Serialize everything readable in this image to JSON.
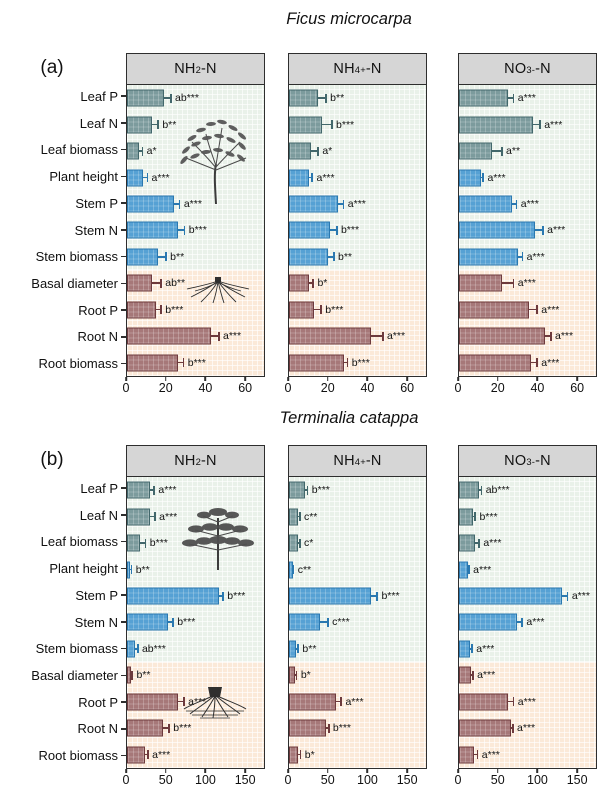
{
  "style": {
    "leaf": {
      "fill": "#7c9b9d",
      "border": "#42676b"
    },
    "stem": {
      "fill": "#56a1d4",
      "border": "#2a78b0"
    },
    "root": {
      "fill": "#a67879",
      "border": "#6d3a3d"
    },
    "zone_green": "#e9f1e9",
    "zone_orange": "#fbe9d8",
    "header_bg": "#d6d6d6",
    "frame": "#2e2e2e"
  },
  "illustrations": {
    "panel_a": [
      "broadleaf-tree-illustration",
      "root-system-illustration"
    ],
    "panel_b": [
      "pagoda-tree-illustration",
      "root-clump-illustration"
    ]
  },
  "chart_data": [
    {
      "type": "bar",
      "title": "Ficus microcarpa",
      "panel_label": "(a)",
      "orientation": "horizontal",
      "grid": true,
      "categories": [
        "Leaf P",
        "Leaf N",
        "Leaf biomass",
        "Plant height",
        "Stem P",
        "Stem N",
        "Stem biomass",
        "Basal diameter",
        "Root P",
        "Root N",
        "Root biomass"
      ],
      "category_groups": [
        "leaf",
        "leaf",
        "leaf",
        "stem",
        "stem",
        "stem",
        "stem",
        "root",
        "root",
        "root",
        "root"
      ],
      "xlim": [
        0,
        70
      ],
      "xticks": [
        0,
        20,
        40,
        60
      ],
      "panels": [
        {
          "header": "NH2-N",
          "header_parts": [
            "NH",
            {
              "sub": "2"
            },
            "-N"
          ],
          "values": [
            19,
            13,
            6,
            8,
            24,
            26,
            16,
            13,
            15,
            43,
            26
          ],
          "errors": [
            3.5,
            3,
            2,
            2.5,
            3,
            3.5,
            4,
            4.5,
            2.5,
            4,
            3
          ],
          "sig": [
            "ab***",
            "b**",
            "a*",
            "a***",
            "a***",
            "b***",
            "b**",
            "ab**",
            "b***",
            "a***",
            "b***"
          ]
        },
        {
          "header": "NH4+-N",
          "header_parts": [
            "NH",
            {
              "sub": "4"
            },
            {
              "sup": "+"
            },
            "-N"
          ],
          "values": [
            15,
            17,
            11,
            10,
            25,
            21,
            20,
            10,
            13,
            42,
            28
          ],
          "errors": [
            4,
            5,
            4,
            2,
            3,
            3.5,
            3,
            2.5,
            3.5,
            6,
            2
          ],
          "sig": [
            "b**",
            "b***",
            "a*",
            "a***",
            "a***",
            "b***",
            "b**",
            "b*",
            "b***",
            "a***",
            "b***"
          ]
        },
        {
          "header": "NO3--N",
          "header_parts": [
            "NO",
            {
              "sub": "3"
            },
            {
              "sup": "-"
            },
            "-N"
          ],
          "values": [
            25,
            38,
            17,
            11,
            27,
            39,
            30,
            22,
            36,
            44,
            37
          ],
          "errors": [
            3,
            3.5,
            5,
            1.5,
            2.5,
            4,
            2.5,
            6,
            4,
            3,
            3
          ],
          "sig": [
            "a***",
            "a***",
            "a**",
            "a***",
            "a***",
            "a***",
            "a***",
            "a***",
            "a***",
            "a***",
            "a***"
          ]
        }
      ]
    },
    {
      "type": "bar",
      "title": "Terminalia catappa",
      "panel_label": "(b)",
      "orientation": "horizontal",
      "grid": true,
      "categories": [
        "Leaf P",
        "Leaf N",
        "Leaf biomass",
        "Plant height",
        "Stem P",
        "Stem N",
        "Stem biomass",
        "Basal diameter",
        "Root P",
        "Root N",
        "Root biomass"
      ],
      "category_groups": [
        "leaf",
        "leaf",
        "leaf",
        "stem",
        "stem",
        "stem",
        "stem",
        "root",
        "root",
        "root",
        "root"
      ],
      "xlim": [
        0,
        175
      ],
      "xticks": [
        0,
        50,
        100,
        150
      ],
      "panels": [
        {
          "header": "NH2-N",
          "header_parts": [
            "NH",
            {
              "sub": "2"
            },
            "-N"
          ],
          "values": [
            29,
            30,
            16,
            4,
            118,
            53,
            10,
            5,
            65,
            46,
            23
          ],
          "errors": [
            6,
            6,
            8,
            2,
            5,
            6,
            4,
            2,
            8,
            8,
            4
          ],
          "sig": [
            "a***",
            "a***",
            "b***",
            "b**",
            "b***",
            "b***",
            "ab***",
            "b**",
            "a***",
            "b***",
            "a***"
          ]
        },
        {
          "header": "NH4+-N",
          "header_parts": [
            "NH",
            {
              "sub": "4"
            },
            {
              "sup": "+"
            },
            "-N"
          ],
          "values": [
            20,
            11,
            11,
            5,
            105,
            40,
            9,
            8,
            60,
            47,
            12
          ],
          "errors": [
            4,
            3,
            3,
            1,
            8,
            10,
            3,
            2,
            7,
            4,
            3
          ],
          "sig": [
            "b***",
            "c**",
            "c*",
            "c**",
            "b***",
            "c***",
            "b**",
            "b*",
            "a***",
            "b***",
            "b*"
          ]
        },
        {
          "header": "NO3--N",
          "header_parts": [
            "NO",
            {
              "sub": "3"
            },
            {
              "sup": "-"
            },
            "-N"
          ],
          "values": [
            25,
            18,
            20,
            11,
            131,
            74,
            14,
            15,
            62,
            66,
            19
          ],
          "errors": [
            4,
            3,
            6,
            2,
            8,
            7,
            3,
            3,
            8,
            3,
            5
          ],
          "sig": [
            "ab***",
            "b***",
            "a***",
            "a***",
            "a***",
            "a***",
            "a***",
            "a***",
            "a***",
            "a***",
            "a***"
          ]
        }
      ]
    }
  ]
}
